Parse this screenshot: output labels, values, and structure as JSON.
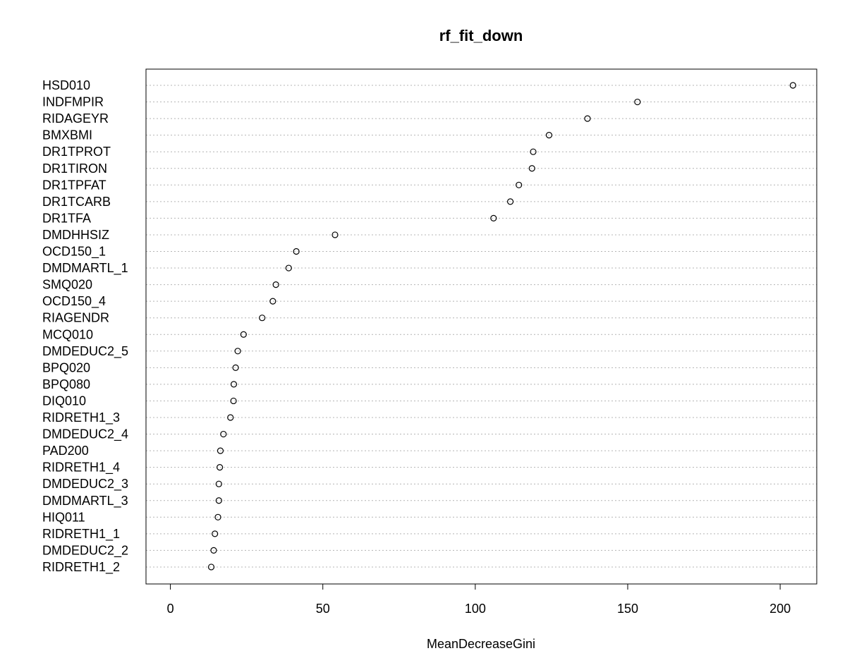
{
  "chart_data": {
    "type": "scatter",
    "title": "rf_fit_down",
    "xlabel": "MeanDecreaseGini",
    "ylabel": "",
    "xlim": [
      -8,
      212
    ],
    "xticks": [
      0,
      50,
      100,
      150,
      200
    ],
    "grid": "horizontal dotted lines",
    "legend": "none",
    "variables": [
      "HSD010",
      "INDFMPIR",
      "RIDAGEYR",
      "BMXBMI",
      "DR1TPROT",
      "DR1TIRON",
      "DR1TPFAT",
      "DR1TCARB",
      "DR1TFA",
      "DMDHHSIZ",
      "OCD150_1",
      "DMDMARTL_1",
      "SMQ020",
      "OCD150_4",
      "RIAGENDR",
      "MCQ010",
      "DMDEDUC2_5",
      "BPQ020",
      "BPQ080",
      "DIQ010",
      "RIDRETH1_3",
      "DMDEDUC2_4",
      "PAD200",
      "RIDRETH1_4",
      "DMDEDUC2_3",
      "DMDMARTL_3",
      "HIQ011",
      "RIDRETH1_1",
      "DMDEDUC2_2",
      "RIDRETH1_2"
    ],
    "values": [
      204.2,
      153.2,
      136.8,
      124.2,
      119.0,
      118.6,
      114.3,
      111.5,
      106.0,
      54.0,
      41.3,
      38.8,
      34.6,
      33.6,
      30.1,
      24.0,
      22.1,
      21.4,
      20.8,
      20.7,
      19.7,
      17.4,
      16.4,
      16.2,
      15.9,
      15.9,
      15.6,
      14.6,
      14.2,
      13.4
    ]
  }
}
